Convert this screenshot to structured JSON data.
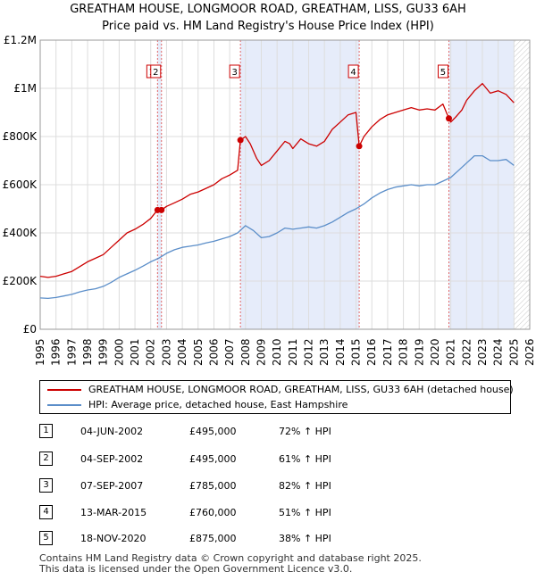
{
  "title_line1": "GREATHAM HOUSE, LONGMOOR ROAD, GREATHAM, LISS, GU33 6AH",
  "title_line2": "Price paid vs. HM Land Registry's House Price Index (HPI)",
  "colors": {
    "property": "#cc0000",
    "hpi": "#5b8ec9",
    "shade": "#e6ecfa",
    "grid": "#dddddd",
    "vline": "#e06666"
  },
  "legend": {
    "property_label": "GREATHAM HOUSE, LONGMOOR ROAD, GREATHAM, LISS, GU33 6AH (detached house)",
    "hpi_label": "HPI: Average price, detached house, East Hampshire"
  },
  "transactions": [
    {
      "num": "1",
      "date": "04-JUN-2002",
      "price": "£495,000",
      "hpi": "72% ↑ HPI"
    },
    {
      "num": "2",
      "date": "04-SEP-2002",
      "price": "£495,000",
      "hpi": "61% ↑ HPI"
    },
    {
      "num": "3",
      "date": "07-SEP-2007",
      "price": "£785,000",
      "hpi": "82% ↑ HPI"
    },
    {
      "num": "4",
      "date": "13-MAR-2015",
      "price": "£760,000",
      "hpi": "51% ↑ HPI"
    },
    {
      "num": "5",
      "date": "18-NOV-2020",
      "price": "£875,000",
      "hpi": "38% ↑ HPI"
    }
  ],
  "footer": {
    "line1": "Contains HM Land Registry data © Crown copyright and database right 2025.",
    "line2": "This data is licensed under the Open Government Licence v3.0."
  },
  "chart_data": {
    "type": "line",
    "title": "GREATHAM HOUSE, LONGMOOR ROAD, GREATHAM, LISS, GU33 6AH — Price paid vs. HM Land Registry's House Price Index (HPI)",
    "xlabel": "",
    "ylabel": "",
    "xlim": [
      1995,
      2026
    ],
    "ylim": [
      0,
      1200000
    ],
    "x_ticks": [
      1995,
      1996,
      1997,
      1998,
      1999,
      2000,
      2001,
      2002,
      2003,
      2004,
      2005,
      2006,
      2007,
      2008,
      2009,
      2010,
      2011,
      2012,
      2013,
      2014,
      2015,
      2016,
      2017,
      2018,
      2019,
      2020,
      2021,
      2022,
      2023,
      2024,
      2025,
      2026
    ],
    "y_ticks": [
      {
        "value": 0,
        "label": "£0"
      },
      {
        "value": 200000,
        "label": "£200K"
      },
      {
        "value": 400000,
        "label": "£400K"
      },
      {
        "value": 600000,
        "label": "£600K"
      },
      {
        "value": 800000,
        "label": "£800K"
      },
      {
        "value": 1000000,
        "label": "£1M"
      },
      {
        "value": 1200000,
        "label": "£1.2M"
      }
    ],
    "shaded_periods": [
      [
        2002.43,
        2002.68
      ],
      [
        2007.68,
        2015.2
      ],
      [
        2020.88,
        2025.0
      ]
    ],
    "hatched_after": 2025.0,
    "markers": [
      {
        "label": "1",
        "x": 2002.43,
        "y": 495000
      },
      {
        "label": "2",
        "x": 2002.68,
        "y": 495000
      },
      {
        "label": "3",
        "x": 2007.68,
        "y": 785000
      },
      {
        "label": "4",
        "x": 2015.2,
        "y": 760000
      },
      {
        "label": "5",
        "x": 2020.88,
        "y": 875000
      }
    ],
    "series": [
      {
        "name": "GREATHAM HOUSE, LONGMOOR ROAD, GREATHAM, LISS, GU33 6AH (detached house)",
        "color": "#cc0000",
        "points": [
          [
            1995.0,
            220000
          ],
          [
            1995.5,
            215000
          ],
          [
            1996.0,
            220000
          ],
          [
            1996.5,
            230000
          ],
          [
            1997.0,
            240000
          ],
          [
            1997.5,
            260000
          ],
          [
            1998.0,
            280000
          ],
          [
            1998.5,
            295000
          ],
          [
            1999.0,
            310000
          ],
          [
            1999.5,
            340000
          ],
          [
            2000.0,
            370000
          ],
          [
            2000.5,
            400000
          ],
          [
            2001.0,
            415000
          ],
          [
            2001.5,
            435000
          ],
          [
            2002.0,
            460000
          ],
          [
            2002.43,
            495000
          ],
          [
            2002.68,
            495000
          ],
          [
            2003.0,
            510000
          ],
          [
            2003.5,
            525000
          ],
          [
            2004.0,
            540000
          ],
          [
            2004.5,
            560000
          ],
          [
            2005.0,
            570000
          ],
          [
            2005.5,
            585000
          ],
          [
            2006.0,
            600000
          ],
          [
            2006.5,
            625000
          ],
          [
            2007.0,
            640000
          ],
          [
            2007.5,
            660000
          ],
          [
            2007.68,
            785000
          ],
          [
            2008.0,
            800000
          ],
          [
            2008.3,
            770000
          ],
          [
            2008.7,
            710000
          ],
          [
            2009.0,
            680000
          ],
          [
            2009.5,
            700000
          ],
          [
            2010.0,
            740000
          ],
          [
            2010.5,
            780000
          ],
          [
            2010.8,
            770000
          ],
          [
            2011.0,
            750000
          ],
          [
            2011.5,
            790000
          ],
          [
            2012.0,
            770000
          ],
          [
            2012.5,
            760000
          ],
          [
            2013.0,
            780000
          ],
          [
            2013.5,
            830000
          ],
          [
            2014.0,
            860000
          ],
          [
            2014.5,
            890000
          ],
          [
            2015.0,
            900000
          ],
          [
            2015.2,
            760000
          ],
          [
            2015.5,
            800000
          ],
          [
            2016.0,
            840000
          ],
          [
            2016.5,
            870000
          ],
          [
            2017.0,
            890000
          ],
          [
            2017.5,
            900000
          ],
          [
            2018.0,
            910000
          ],
          [
            2018.5,
            920000
          ],
          [
            2019.0,
            910000
          ],
          [
            2019.5,
            915000
          ],
          [
            2020.0,
            910000
          ],
          [
            2020.5,
            935000
          ],
          [
            2020.88,
            875000
          ],
          [
            2021.0,
            860000
          ],
          [
            2021.3,
            880000
          ],
          [
            2021.7,
            910000
          ],
          [
            2022.0,
            950000
          ],
          [
            2022.5,
            990000
          ],
          [
            2023.0,
            1020000
          ],
          [
            2023.5,
            980000
          ],
          [
            2024.0,
            990000
          ],
          [
            2024.5,
            975000
          ],
          [
            2025.0,
            940000
          ]
        ]
      },
      {
        "name": "HPI: Average price, detached house, East Hampshire",
        "color": "#5b8ec9",
        "points": [
          [
            1995.0,
            130000
          ],
          [
            1995.5,
            128000
          ],
          [
            1996.0,
            132000
          ],
          [
            1996.5,
            138000
          ],
          [
            1997.0,
            145000
          ],
          [
            1997.5,
            155000
          ],
          [
            1998.0,
            163000
          ],
          [
            1998.5,
            168000
          ],
          [
            1999.0,
            178000
          ],
          [
            1999.5,
            195000
          ],
          [
            2000.0,
            215000
          ],
          [
            2000.5,
            230000
          ],
          [
            2001.0,
            245000
          ],
          [
            2001.5,
            262000
          ],
          [
            2002.0,
            280000
          ],
          [
            2002.5,
            295000
          ],
          [
            2003.0,
            315000
          ],
          [
            2003.5,
            330000
          ],
          [
            2004.0,
            340000
          ],
          [
            2004.5,
            345000
          ],
          [
            2005.0,
            350000
          ],
          [
            2005.5,
            358000
          ],
          [
            2006.0,
            365000
          ],
          [
            2006.5,
            375000
          ],
          [
            2007.0,
            385000
          ],
          [
            2007.5,
            400000
          ],
          [
            2008.0,
            430000
          ],
          [
            2008.5,
            410000
          ],
          [
            2009.0,
            380000
          ],
          [
            2009.5,
            385000
          ],
          [
            2010.0,
            400000
          ],
          [
            2010.5,
            420000
          ],
          [
            2011.0,
            415000
          ],
          [
            2011.5,
            420000
          ],
          [
            2012.0,
            425000
          ],
          [
            2012.5,
            420000
          ],
          [
            2013.0,
            430000
          ],
          [
            2013.5,
            445000
          ],
          [
            2014.0,
            465000
          ],
          [
            2014.5,
            485000
          ],
          [
            2015.0,
            500000
          ],
          [
            2015.5,
            520000
          ],
          [
            2016.0,
            545000
          ],
          [
            2016.5,
            565000
          ],
          [
            2017.0,
            580000
          ],
          [
            2017.5,
            590000
          ],
          [
            2018.0,
            595000
          ],
          [
            2018.5,
            600000
          ],
          [
            2019.0,
            595000
          ],
          [
            2019.5,
            600000
          ],
          [
            2020.0,
            600000
          ],
          [
            2020.5,
            615000
          ],
          [
            2021.0,
            630000
          ],
          [
            2021.5,
            660000
          ],
          [
            2022.0,
            690000
          ],
          [
            2022.5,
            720000
          ],
          [
            2023.0,
            720000
          ],
          [
            2023.5,
            700000
          ],
          [
            2024.0,
            700000
          ],
          [
            2024.5,
            705000
          ],
          [
            2025.0,
            680000
          ]
        ]
      }
    ]
  }
}
